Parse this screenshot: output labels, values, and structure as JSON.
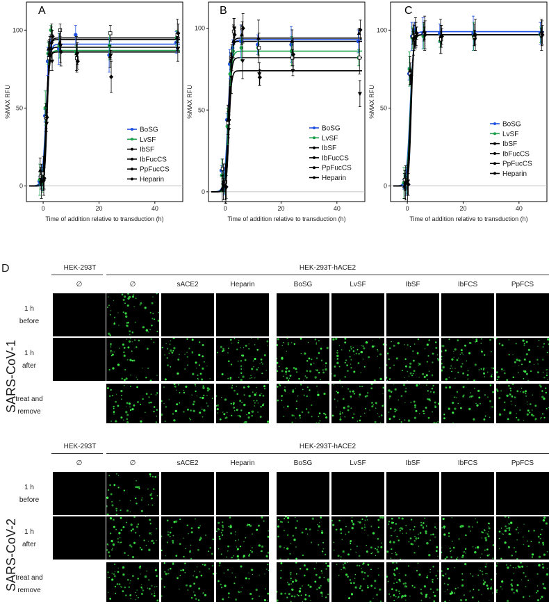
{
  "chart_data": [
    {
      "panel": "A",
      "type": "line",
      "xlabel": "Time of addition relative to transduction (h)",
      "ylabel": "%MAX RFU",
      "xlim": [
        -6,
        50
      ],
      "ylim": [
        -10,
        118
      ],
      "x_ticks": [
        "0",
        "20",
        "40"
      ],
      "y_ticks": [
        "0",
        "50",
        "100"
      ],
      "legend_position": "right",
      "x": [
        -1,
        0,
        1,
        2,
        3,
        6,
        12,
        24,
        48
      ],
      "series": [
        {
          "name": "BoSG",
          "color": "#1f4fe0",
          "values": [
            3,
            5,
            45,
            80,
            92,
            88,
            97,
            84,
            92
          ],
          "plateau": 91
        },
        {
          "name": "LvSF",
          "color": "#1aa04a",
          "values": [
            4,
            2,
            50,
            85,
            100,
            90,
            86,
            90,
            95
          ],
          "plateau": 87
        },
        {
          "name": "IbSF",
          "color": "#000000",
          "values": [
            10,
            4,
            44,
            88,
            92,
            92,
            85,
            83,
            95
          ],
          "plateau": 95
        },
        {
          "name": "IbFucCS",
          "color": "#000000",
          "values": [
            6,
            8,
            44,
            82,
            96,
            100,
            82,
            98,
            97
          ],
          "plateau": 94
        },
        {
          "name": "PpFucCS",
          "color": "#000000",
          "values": [
            2,
            3,
            40,
            84,
            80,
            90,
            85,
            84,
            88
          ],
          "plateau": 86
        },
        {
          "name": "Heparin",
          "color": "#000000",
          "values": [
            3,
            5,
            44,
            88,
            96,
            86,
            80,
            70,
            98
          ],
          "plateau": 89
        }
      ]
    },
    {
      "panel": "B",
      "type": "line",
      "xlabel": "Time of addition relative to transduction (h)",
      "ylabel": "%MAX RFU",
      "xlim": [
        -6,
        50
      ],
      "ylim": [
        -6,
        116
      ],
      "x_ticks": [
        "0",
        "20",
        "40"
      ],
      "y_ticks": [
        "0",
        "50",
        "100"
      ],
      "legend_position": "right",
      "x": [
        -1,
        0,
        1,
        2,
        3,
        6,
        12,
        24,
        48
      ],
      "series": [
        {
          "name": "BoSG",
          "color": "#1f4fe0",
          "values": [
            13,
            6,
            44,
            78,
            88,
            92,
            90,
            90,
            92
          ],
          "plateau": 93
        },
        {
          "name": "LvSF",
          "color": "#1aa04a",
          "values": [
            10,
            5,
            40,
            72,
            86,
            88,
            88,
            86,
            82
          ],
          "plateau": 86
        },
        {
          "name": "IbSF",
          "color": "#000000",
          "values": [
            2,
            4,
            44,
            80,
            92,
            96,
            94,
            92,
            97
          ],
          "plateau": 94
        },
        {
          "name": "IbFucCS",
          "color": "#000000",
          "values": [
            14,
            6,
            42,
            82,
            98,
            100,
            88,
            82,
            82
          ],
          "plateau": 82
        },
        {
          "name": "PpFucCS",
          "color": "#000000",
          "values": [
            4,
            2,
            38,
            70,
            100,
            80,
            72,
            74,
            60
          ],
          "plateau": 74
        },
        {
          "name": "Heparin",
          "color": "#000000",
          "values": [
            6,
            3,
            44,
            82,
            96,
            100,
            70,
            84,
            99
          ],
          "plateau": 92
        }
      ]
    },
    {
      "panel": "C",
      "type": "line",
      "xlabel": "Time of addition relative to transduction (h)",
      "ylabel": "%MAX RFU",
      "xlim": [
        -6,
        50
      ],
      "ylim": [
        -10,
        118
      ],
      "x_ticks": [
        "0",
        "20",
        "40"
      ],
      "y_ticks": [
        "0",
        "50",
        "100"
      ],
      "legend_position": "right",
      "x": [
        -1,
        0,
        1,
        2,
        3,
        6,
        12,
        24,
        48
      ],
      "series": [
        {
          "name": "BoSG",
          "color": "#1f4fe0",
          "values": [
            1,
            2,
            72,
            96,
            100,
            98,
            98,
            98,
            98
          ],
          "plateau": 99
        },
        {
          "name": "LvSF",
          "color": "#1aa04a",
          "values": [
            2,
            1,
            75,
            95,
            97,
            96,
            93,
            96,
            97
          ],
          "plateau": 97
        },
        {
          "name": "IbSF",
          "color": "#000000",
          "values": [
            0,
            2,
            74,
            96,
            98,
            99,
            96,
            97,
            98
          ],
          "plateau": 97
        },
        {
          "name": "IbFucCS",
          "color": "#000000",
          "values": [
            4,
            1,
            72,
            96,
            97,
            98,
            94,
            95,
            97
          ],
          "plateau": 97
        },
        {
          "name": "PpFucCS",
          "color": "#000000",
          "values": [
            1,
            3,
            70,
            94,
            96,
            98,
            96,
            94,
            98
          ],
          "plateau": 97
        },
        {
          "name": "Heparin",
          "color": "#000000",
          "values": [
            2,
            1,
            71,
            95,
            98,
            97,
            96,
            97,
            97
          ],
          "plateau": 97
        }
      ]
    }
  ],
  "panelD": {
    "letter": "D",
    "row_labels": [
      {
        "line1": "1 h",
        "line2": "before"
      },
      {
        "line1": "1 h",
        "line2": "after"
      },
      {
        "line1": "treat and",
        "line2": "remove"
      }
    ],
    "blocks": [
      {
        "virus": "SARS-CoV-1",
        "cell_left": "HEK-293T",
        "cell_right": "HEK-293T-hACE2",
        "columns": [
          "∅",
          "∅",
          "sACE2",
          "Heparin",
          "BoSG",
          "LvSF",
          "IbSF",
          "IbFCS",
          "PpFCS"
        ]
      },
      {
        "virus": "SARS-CoV-2",
        "cell_left": "HEK-293T",
        "cell_right": "HEK-293T-hACE2",
        "columns": [
          "∅",
          "∅",
          "sACE2",
          "Heparin",
          "BoSG",
          "LvSF",
          "IbSF",
          "IbFCS",
          "PpFCS"
        ]
      }
    ],
    "tile_signal": [
      [
        0,
        1,
        0,
        0,
        0,
        0,
        0,
        0,
        0
      ],
      [
        0,
        1,
        1,
        1,
        1,
        1,
        1,
        1,
        1
      ],
      [
        -1,
        1,
        1,
        1,
        1,
        1,
        1,
        1,
        1
      ]
    ]
  }
}
